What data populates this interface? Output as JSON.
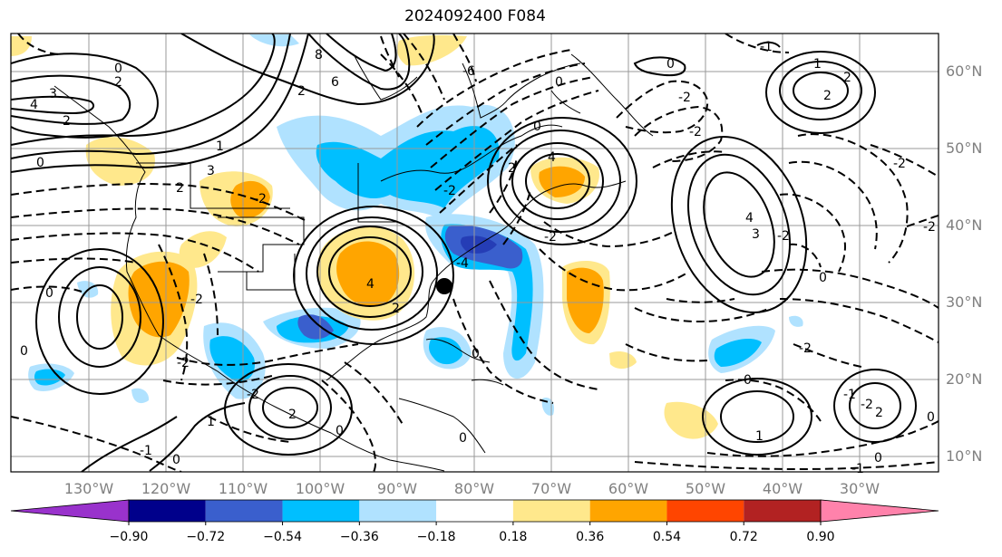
{
  "title": "2024092400 F084",
  "longitude_labels": [
    "130°W",
    "120°W",
    "110°W",
    "100°W",
    "90°W",
    "80°W",
    "70°W",
    "60°W",
    "50°W",
    "40°W",
    "30°W"
  ],
  "latitude_labels": [
    "60°N",
    "50°N",
    "40°N",
    "30°N",
    "20°N",
    "10°N"
  ],
  "colorbar": {
    "tick_labels": [
      "−0.90",
      "−0.72",
      "−0.54",
      "−0.36",
      "−0.18",
      "0.18",
      "0.36",
      "0.54",
      "0.72",
      "0.90"
    ],
    "colors": [
      "#9932cc",
      "#00008b",
      "#3a5fcd",
      "#00bfff",
      "#b0e2ff",
      "#ffffff",
      "#ffe88c",
      "#ffa500",
      "#ff4500",
      "#b22222",
      "#ff82ab"
    ]
  },
  "contour_labels": [
    "0",
    "2",
    "4",
    "3",
    "2",
    "0",
    "1",
    "3",
    "2",
    "-2",
    "2",
    "6",
    "8",
    "-6",
    "-2",
    "-4",
    "0",
    "-2",
    "-2",
    "0",
    "4",
    "-2",
    "0",
    "-2",
    "4",
    "-2",
    "3",
    "4",
    "2",
    "0",
    "-2",
    "2",
    "-2",
    "0",
    "-2",
    "2",
    "-2",
    "0",
    "1",
    "2",
    "0",
    "0",
    "-1",
    "0",
    "0",
    "2",
    "-1",
    "0",
    "-2",
    "1",
    "-1",
    "2",
    "-2",
    "-1",
    "0",
    "0",
    "1"
  ],
  "marker": "storm-center"
}
